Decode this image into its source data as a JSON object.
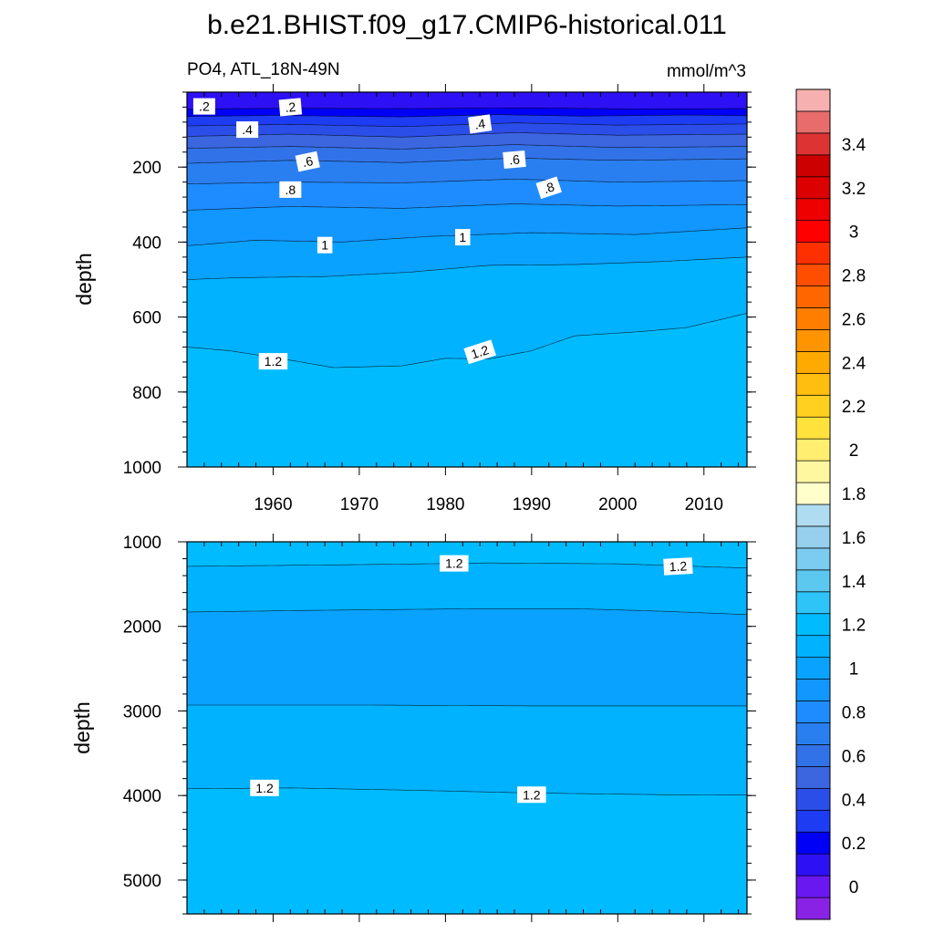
{
  "chart_data": {
    "title": "b.e21.BHIST.f09_g17.CMIP6-historical.011",
    "subtitle_left": "PO4, ATL_18N-49N",
    "subtitle_right": "mmol/m^3",
    "type": "contour",
    "x_range": [
      1950,
      2015
    ],
    "x_ticks": [
      "1960",
      "1970",
      "1980",
      "1990",
      "2000",
      "2010"
    ],
    "colorbar": {
      "levels": [
        -0.1,
        0,
        0.1,
        0.2,
        0.3,
        0.4,
        0.5,
        0.6,
        0.7,
        0.8,
        0.9,
        1.0,
        1.1,
        1.2,
        1.3,
        1.4,
        1.5,
        1.6,
        1.7,
        1.8,
        1.9,
        2.0,
        2.1,
        2.2,
        2.3,
        2.4,
        2.5,
        2.6,
        2.7,
        2.8,
        2.9,
        3.0,
        3.1,
        3.2,
        3.3,
        3.4,
        3.5,
        3.6
      ],
      "colors": [
        "#8a22e6",
        "#6a18f0",
        "#2e10f5",
        "#0000f7",
        "#1e3cf2",
        "#2c4ee8",
        "#3b66e0",
        "#3272e8",
        "#2a7ff0",
        "#1e8cff",
        "#1296ff",
        "#0aa2ff",
        "#00b2ff",
        "#00bcff",
        "#2ec4f8",
        "#5cc8f0",
        "#7ccbf0",
        "#96d0ee",
        "#b0dcf2",
        "#ffffcc",
        "#fff6a0",
        "#ffee70",
        "#ffe23c",
        "#ffd020",
        "#ffbe10",
        "#ffaa00",
        "#ff9400",
        "#ff7e00",
        "#ff6600",
        "#ff4e00",
        "#ff3000",
        "#ff0000",
        "#ee0000",
        "#dd0000",
        "#cc0000",
        "#dd3333",
        "#e86c6c",
        "#f7b0b0"
      ],
      "tick_labels": [
        "0",
        "0.2",
        "0.4",
        "0.6",
        "0.8",
        "1",
        "1.2",
        "1.4",
        "1.6",
        "1.8",
        "2",
        "2.2",
        "2.4",
        "2.6",
        "2.8",
        "3",
        "3.2",
        "3.4"
      ]
    },
    "panels": [
      {
        "name": "upper",
        "ylabel": "depth",
        "y_range": [
          0,
          1000
        ],
        "y_ticks": [
          "200",
          "400",
          "600",
          "800",
          "1000"
        ],
        "bands": [
          {
            "value": 0.15,
            "top": [
              [
                1950,
                25
              ],
              [
                2015,
                25
              ]
            ]
          },
          {
            "value": 0.25,
            "top": [
              [
                1950,
                45
              ],
              [
                1962,
                43
              ],
              [
                1975,
                44
              ],
              [
                1990,
                42
              ],
              [
                2002,
                45
              ],
              [
                2015,
                44
              ]
            ]
          },
          {
            "value": 0.35,
            "top": [
              [
                1950,
                65
              ],
              [
                1960,
                62
              ],
              [
                1975,
                66
              ],
              [
                1986,
                60
              ],
              [
                1996,
                64
              ],
              [
                2008,
                61
              ],
              [
                2015,
                63
              ]
            ]
          },
          {
            "value": 0.45,
            "top": [
              [
                1950,
                90
              ],
              [
                1962,
                86
              ],
              [
                1975,
                92
              ],
              [
                1988,
                82
              ],
              [
                2000,
                88
              ],
              [
                2015,
                85
              ]
            ]
          },
          {
            "value": 0.55,
            "top": [
              [
                1950,
                118
              ],
              [
                1962,
                112
              ],
              [
                1975,
                120
              ],
              [
                1988,
                108
              ],
              [
                2000,
                115
              ],
              [
                2015,
                112
              ]
            ]
          },
          {
            "value": 0.65,
            "top": [
              [
                1950,
                150
              ],
              [
                1962,
                145
              ],
              [
                1975,
                152
              ],
              [
                1988,
                140
              ],
              [
                2000,
                148
              ],
              [
                2015,
                145
              ]
            ]
          },
          {
            "value": 0.75,
            "top": [
              [
                1950,
                190
              ],
              [
                1962,
                182
              ],
              [
                1975,
                188
              ],
              [
                1988,
                176
              ],
              [
                2000,
                182
              ],
              [
                2015,
                178
              ]
            ]
          },
          {
            "value": 0.85,
            "top": [
              [
                1950,
                245
              ],
              [
                1962,
                240
              ],
              [
                1975,
                242
              ],
              [
                1988,
                232
              ],
              [
                2000,
                240
              ],
              [
                2015,
                236
              ]
            ]
          },
          {
            "value": 0.95,
            "top": [
              [
                1950,
                315
              ],
              [
                1962,
                305
              ],
              [
                1975,
                310
              ],
              [
                1988,
                298
              ],
              [
                2000,
                304
              ],
              [
                2015,
                300
              ]
            ]
          },
          {
            "value": 1.05,
            "top": [
              [
                1950,
                410
              ],
              [
                1958,
                395
              ],
              [
                1968,
                400
              ],
              [
                1978,
                385
              ],
              [
                1990,
                375
              ],
              [
                2002,
                380
              ],
              [
                2015,
                362
              ]
            ]
          },
          {
            "value": 1.15,
            "top": [
              [
                1950,
                500
              ],
              [
                1956,
                495
              ],
              [
                1966,
                492
              ],
              [
                1976,
                480
              ],
              [
                1985,
                462
              ],
              [
                1995,
                460
              ],
              [
                2005,
                452
              ],
              [
                2015,
                440
              ]
            ]
          },
          {
            "value": 1.25,
            "top": [
              [
                1950,
                680
              ],
              [
                1955,
                690
              ],
              [
                1962,
                715
              ],
              [
                1967,
                735
              ],
              [
                1975,
                730
              ],
              [
                1980,
                710
              ],
              [
                1985,
                712
              ],
              [
                1990,
                690
              ],
              [
                1995,
                650
              ],
              [
                2002,
                640
              ],
              [
                2008,
                628
              ],
              [
                2015,
                590
              ]
            ]
          }
        ],
        "line_labels": [
          {
            "text": ".2",
            "x": 1952,
            "y": 38,
            "angle": 0
          },
          {
            "text": ".2",
            "x": 1962,
            "y": 40,
            "angle": -5
          },
          {
            "text": ".4",
            "x": 1957,
            "y": 100,
            "angle": 0
          },
          {
            "text": ".4",
            "x": 1984,
            "y": 85,
            "angle": -8
          },
          {
            "text": ".6",
            "x": 1964,
            "y": 185,
            "angle": -12
          },
          {
            "text": ".6",
            "x": 1988,
            "y": 180,
            "angle": -5
          },
          {
            "text": ".8",
            "x": 1962,
            "y": 260,
            "angle": 0
          },
          {
            "text": ".8",
            "x": 1992,
            "y": 255,
            "angle": -18
          },
          {
            "text": "1",
            "x": 1966,
            "y": 408,
            "angle": 0
          },
          {
            "text": "1",
            "x": 1982,
            "y": 387,
            "angle": 0
          },
          {
            "text": "1.2",
            "x": 1960,
            "y": 718,
            "angle": 0
          },
          {
            "text": "1.2",
            "x": 1984,
            "y": 693,
            "angle": -18
          }
        ]
      },
      {
        "name": "lower",
        "ylabel": "depth",
        "y_range": [
          1000,
          5400
        ],
        "y_ticks": [
          "1000",
          "2000",
          "3000",
          "4000",
          "5000"
        ],
        "bands": [
          {
            "value": 1.25,
            "top": [
              [
                1950,
                1000
              ],
              [
                2015,
                1000
              ]
            ]
          },
          {
            "value": 1.15,
            "top": [
              [
                1950,
                1290
              ],
              [
                1970,
                1270
              ],
              [
                1985,
                1250
              ],
              [
                2000,
                1260
              ],
              [
                2015,
                1310
              ]
            ]
          },
          {
            "value": 1.05,
            "top": [
              [
                1950,
                1830
              ],
              [
                1965,
                1810
              ],
              [
                1985,
                1790
              ],
              [
                1995,
                1790
              ],
              [
                2005,
                1820
              ],
              [
                2015,
                1860
              ]
            ]
          },
          {
            "value": 1.15,
            "top": [
              [
                1950,
                2930
              ],
              [
                1970,
                2930
              ],
              [
                1990,
                2940
              ],
              [
                2015,
                2940
              ]
            ]
          },
          {
            "value": 1.25,
            "top": [
              [
                1950,
                3920
              ],
              [
                1962,
                3910
              ],
              [
                1975,
                3935
              ],
              [
                1990,
                3970
              ],
              [
                2005,
                3990
              ],
              [
                2015,
                3995
              ]
            ]
          }
        ],
        "line_labels": [
          {
            "text": "1.2",
            "x": 1981,
            "y": 1255,
            "angle": 0
          },
          {
            "text": "1.2",
            "x": 2007,
            "y": 1290,
            "angle": -3
          },
          {
            "text": "1.2",
            "x": 1959,
            "y": 3910,
            "angle": 0
          },
          {
            "text": "1.2",
            "x": 1990,
            "y": 3990,
            "angle": 0
          }
        ]
      }
    ]
  }
}
